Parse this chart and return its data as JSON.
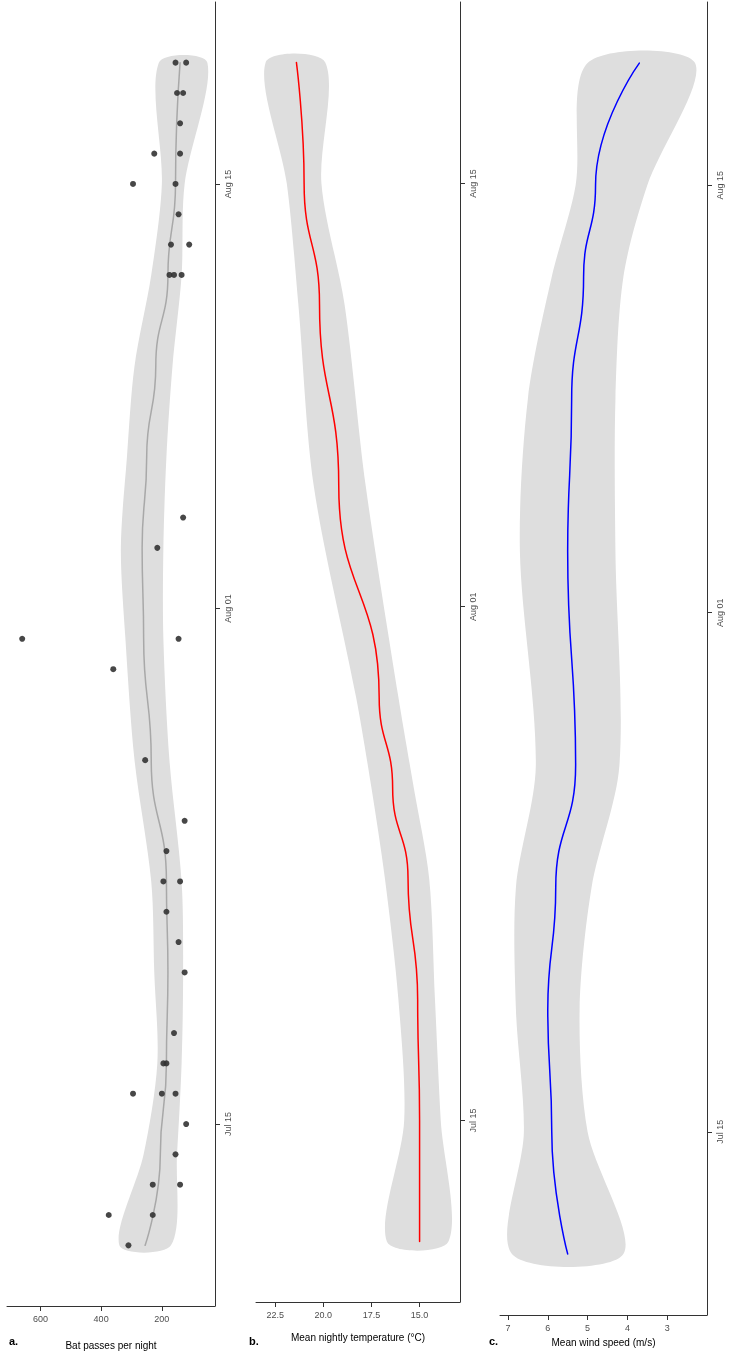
{
  "chart_data": [
    {
      "type": "scatter",
      "orientation": "horizontal",
      "title": "a.",
      "xlabel": "Bat passes per night",
      "ylim": [
        "--07-09",
        "--08-21"
      ],
      "yticks": [
        {
          "value": "--07-15",
          "label": "Jul 15"
        },
        {
          "value": "--08-01",
          "label": "Aug 01"
        },
        {
          "value": "--08-15",
          "label": "Aug 15"
        }
      ],
      "xlim": [
        710,
        25
      ],
      "xticks": [
        600,
        400,
        200
      ],
      "series": [
        {
          "color": "#333333",
          "x": [
            "--07-11",
            "--07-12",
            "--07-12",
            "--07-13",
            "--07-13",
            "--07-14",
            "--07-15",
            "--07-16",
            "--07-16",
            "--07-16",
            "--07-17",
            "--07-17",
            "--07-18",
            "--07-20",
            "--07-21",
            "--07-22",
            "--07-23",
            "--07-23",
            "--07-24",
            "--07-25",
            "--07-27",
            "--07-30",
            "--07-31",
            "--07-31",
            "--08-03",
            "--08-04",
            "--08-12",
            "--08-12",
            "--08-12",
            "--08-13",
            "--08-13",
            "--08-14",
            "--08-15",
            "--08-15",
            "--08-16",
            "--08-16",
            "--08-17",
            "--08-18",
            "--08-18",
            "--08-19",
            "--08-19"
          ],
          "values": [
            310,
            375,
            230,
            230,
            140,
            155,
            120,
            295,
            200,
            155,
            195,
            185,
            160,
            125,
            145,
            185,
            195,
            140,
            185,
            125,
            255,
            360,
            660,
            145,
            215,
            130,
            175,
            160,
            135,
            170,
            110,
            145,
            295,
            155,
            225,
            140,
            140,
            150,
            130,
            155,
            120
          ]
        },
        {
          "type": "line",
          "color": "#a8a8a8",
          "x": [
            "--07-11",
            "--07-14",
            "--07-17",
            "--07-20",
            "--07-23",
            "--07-27",
            "--07-31",
            "--08-03",
            "--08-06",
            "--08-09",
            "--08-12",
            "--08-15",
            "--08-19"
          ],
          "values": [
            255,
            205,
            185,
            180,
            185,
            235,
            260,
            265,
            250,
            220,
            180,
            155,
            140
          ],
          "lower": [
            170,
            150,
            135,
            130,
            135,
            175,
            195,
            195,
            185,
            165,
            135,
            125,
            50
          ],
          "upper": [
            340,
            260,
            215,
            225,
            235,
            290,
            320,
            335,
            315,
            290,
            235,
            200,
            210
          ]
        }
      ]
    },
    {
      "type": "line",
      "orientation": "horizontal",
      "title": "b.",
      "xlabel": "Mean nightly temperature (°C)",
      "ylim": [
        "--07-09",
        "--08-21"
      ],
      "yticks": [
        {
          "value": "--07-15",
          "label": "Jul 15"
        },
        {
          "value": "--08-01",
          "label": "Aug 01"
        },
        {
          "value": "--08-15",
          "label": "Aug 15"
        }
      ],
      "xlim": [
        23.5,
        12.9
      ],
      "xticks": [
        {
          "value": 22.5,
          "label": "22.5"
        },
        {
          "value": 20,
          "label": "20.0"
        },
        {
          "value": 17.5,
          "label": "17.5"
        },
        {
          "value": 15,
          "label": "15.0"
        }
      ],
      "series": [
        {
          "color": "#ff0000",
          "x": [
            "--07-11",
            "--07-15",
            "--07-19",
            "--07-23",
            "--07-26",
            "--07-29",
            "--08-05",
            "--08-11",
            "--08-15",
            "--08-19"
          ],
          "values": [
            15.0,
            15.0,
            15.1,
            15.6,
            16.4,
            17.1,
            19.2,
            20.2,
            21.0,
            21.4
          ],
          "lower": [
            13.5,
            13.9,
            14.2,
            14.5,
            15.3,
            16.1,
            17.8,
            18.9,
            20.1,
            19.9
          ],
          "upper": [
            16.7,
            15.8,
            16.1,
            16.8,
            17.5,
            18.3,
            20.5,
            21.3,
            21.9,
            23.0
          ]
        }
      ]
    },
    {
      "type": "line",
      "orientation": "horizontal",
      "title": "c.",
      "xlabel": "Mean wind speed (m/s)",
      "ylim": [
        "--07-09",
        "--08-21"
      ],
      "yticks": [
        {
          "value": "--07-15",
          "label": "Jul 15"
        },
        {
          "value": "--08-01",
          "label": "Aug 01"
        },
        {
          "value": "--08-15",
          "label": "Aug 15"
        }
      ],
      "xlim": [
        7.2,
        2
      ],
      "xticks": [
        7,
        6,
        5,
        4,
        3
      ],
      "series": [
        {
          "color": "#0000ff",
          "x": [
            "--07-11",
            "--07-15",
            "--07-19",
            "--07-23",
            "--07-27",
            "--08-03",
            "--08-08",
            "--08-12",
            "--08-15",
            "--08-19"
          ],
          "values": [
            5.5,
            5.9,
            6.0,
            5.8,
            5.3,
            5.5,
            5.4,
            5.1,
            4.8,
            3.7
          ],
          "lower": [
            4.1,
            5.0,
            5.2,
            4.9,
            4.2,
            4.3,
            4.3,
            4.1,
            3.5,
            2.3
          ],
          "upper": [
            6.9,
            6.6,
            6.8,
            6.8,
            6.3,
            6.7,
            6.5,
            5.9,
            5.3,
            5.0
          ]
        }
      ]
    }
  ]
}
